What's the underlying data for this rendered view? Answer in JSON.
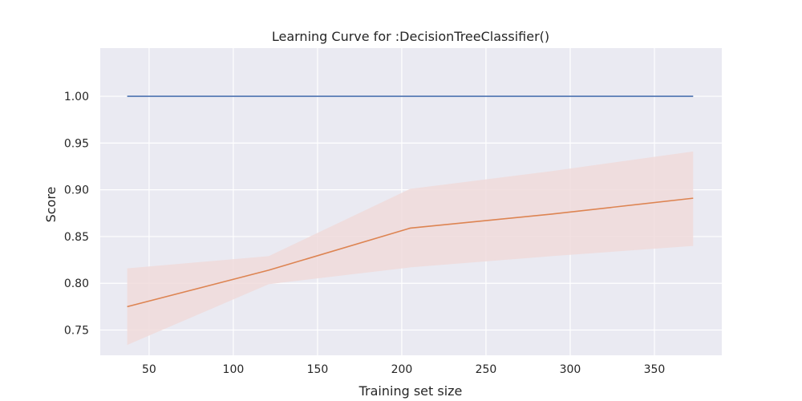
{
  "chart_data": {
    "type": "line",
    "title": "Learning Curve for :DecisionTreeClassifier()",
    "xlabel": "Training set size",
    "ylabel": "Score",
    "xlim": [
      21,
      390
    ],
    "ylim": [
      0.723,
      1.0515
    ],
    "xticks": [
      50,
      100,
      150,
      200,
      250,
      300,
      350
    ],
    "xtick_labels": [
      "50",
      "100",
      "150",
      "200",
      "250",
      "300",
      "350"
    ],
    "yticks": [
      0.75,
      0.8,
      0.85,
      0.9,
      0.95,
      1.0
    ],
    "ytick_labels": [
      "0.75",
      "0.80",
      "0.85",
      "0.90",
      "0.95",
      "1.00"
    ],
    "grid": true,
    "background": "#eaeaf2",
    "series": [
      {
        "x": [
          37,
          121,
          205,
          289,
          373
        ],
        "values": [
          1.0,
          1.0,
          1.0,
          1.0,
          1.0
        ],
        "band_lower": [
          1.0,
          1.0,
          1.0,
          1.0,
          1.0
        ],
        "band_upper": [
          1.0,
          1.0,
          1.0,
          1.0,
          1.0
        ],
        "color": "#4c72b0"
      },
      {
        "x": [
          37,
          121,
          205,
          289,
          373
        ],
        "values": [
          0.775,
          0.814,
          0.859,
          0.874,
          0.891
        ],
        "band_lower": [
          0.734,
          0.799,
          0.817,
          0.829,
          0.84
        ],
        "band_upper": [
          0.816,
          0.829,
          0.901,
          0.92,
          0.941
        ],
        "color": "#dd8452",
        "band_color": "#f0dada"
      }
    ]
  }
}
